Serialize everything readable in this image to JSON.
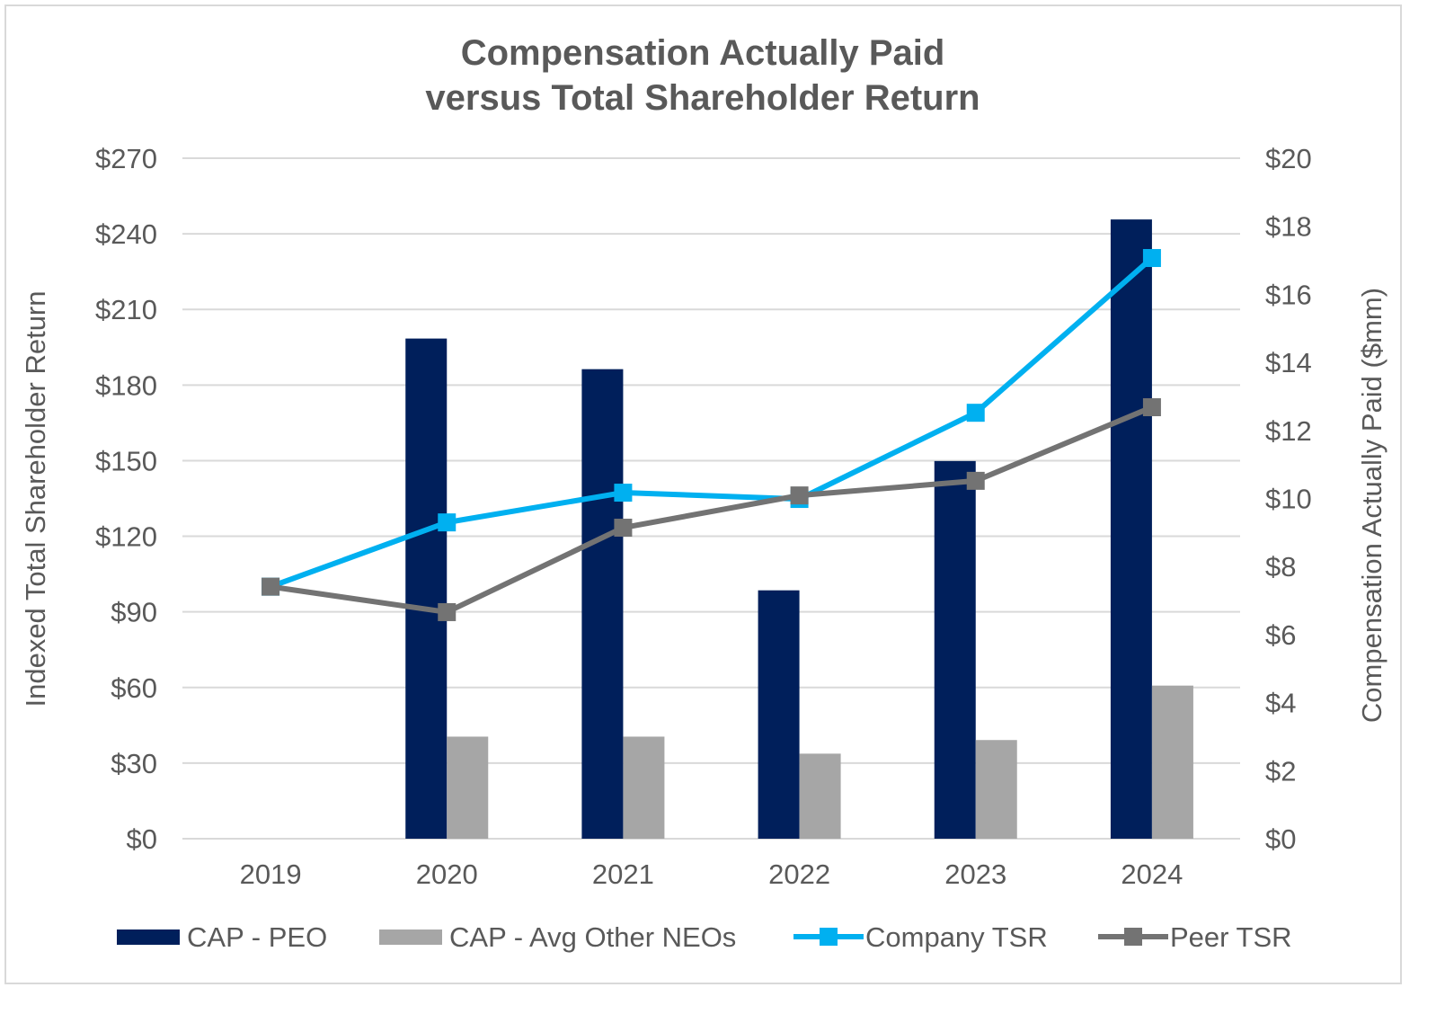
{
  "chart_data": {
    "type": "bar+line",
    "title": "Compensation Actually Paid",
    "subtitle": "versus Total Shareholder Return",
    "categories": [
      "2019",
      "2020",
      "2021",
      "2022",
      "2023",
      "2024"
    ],
    "y_left": {
      "label": "Indexed Total Shareholder Return",
      "range": [
        0,
        270
      ],
      "ticks": [
        "$0",
        "$30",
        "$60",
        "$90",
        "$120",
        "$150",
        "$180",
        "$210",
        "$240",
        "$270"
      ]
    },
    "y_right": {
      "label": "Compensation Actually Paid ($mm)",
      "range": [
        0,
        20
      ],
      "ticks": [
        "$0",
        "$2",
        "$4",
        "$6",
        "$8",
        "$10",
        "$12",
        "$14",
        "$16",
        "$18",
        "$20"
      ]
    },
    "grid": true,
    "legend_position": "bottom",
    "series": [
      {
        "name": "CAP - PEO",
        "type": "bar",
        "axis": "right",
        "color": "#001f5b",
        "values": [
          null,
          14.7,
          13.8,
          7.3,
          11.1,
          18.2
        ]
      },
      {
        "name": "CAP - Avg Other NEOs",
        "type": "bar",
        "axis": "right",
        "color": "#a6a6a6",
        "values": [
          null,
          3.0,
          3.0,
          2.5,
          2.9,
          4.5
        ]
      },
      {
        "name": "Company TSR",
        "type": "line",
        "axis": "left",
        "color": "#00b0f0",
        "values": [
          100,
          125.5,
          137.3,
          134.8,
          169,
          230.4
        ]
      },
      {
        "name": "Peer TSR",
        "type": "line",
        "axis": "left",
        "color": "#737373",
        "values": [
          100,
          89.9,
          123.4,
          136.2,
          142,
          171.2
        ]
      }
    ]
  }
}
